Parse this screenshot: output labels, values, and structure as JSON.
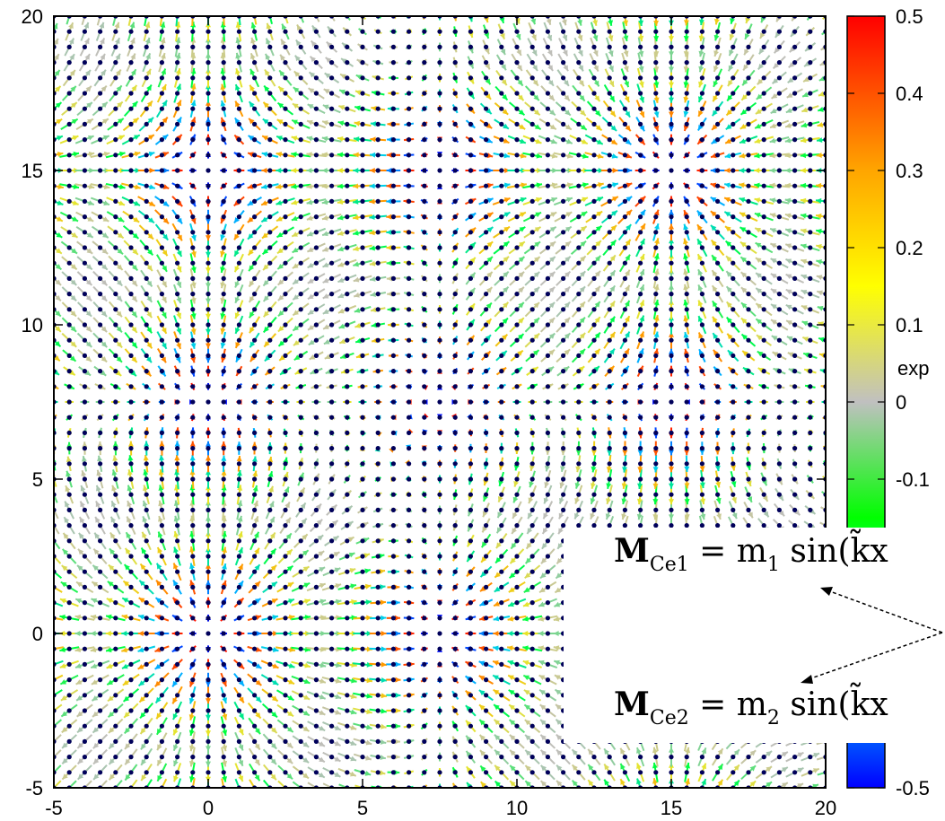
{
  "chart_data": {
    "type": "vector-field",
    "title": "",
    "xlabel": "",
    "ylabel": "",
    "xlim": [
      -5,
      20
    ],
    "ylim": [
      -5,
      20
    ],
    "x_ticks": [
      "-5",
      "0",
      "5",
      "10",
      "15",
      "20"
    ],
    "y_ticks": [
      "-5",
      "0",
      "5",
      "10",
      "15",
      "20"
    ],
    "x_tick_values": [
      -5,
      0,
      5,
      10,
      15,
      20
    ],
    "y_tick_values": [
      -5,
      0,
      5,
      10,
      15,
      20
    ],
    "grid": false,
    "lattice_spacing": 0.5,
    "field_period": 15,
    "symmetry_lines": [
      0,
      7.5,
      15
    ],
    "colorbar": {
      "min": -0.5,
      "max": 0.5,
      "ticks": [
        "0.5",
        "0.4",
        "0.3",
        "0.2",
        "0.1",
        "0",
        "-0.1",
        "-0.5"
      ],
      "tick_values": [
        0.5,
        0.4,
        0.3,
        0.2,
        0.1,
        0,
        -0.1,
        -0.5
      ],
      "partial_label": "exp",
      "colors": {
        "max": "#ff0000",
        "high": "#ffa500",
        "mid_high": "#ffff00",
        "zero": "#c0c0c0",
        "mid_low": "#00ff00",
        "low": "#00ffff",
        "min": "#0000ff"
      }
    },
    "annotations": [
      {
        "name": "M",
        "sub": "Ce1",
        "rest": " = m",
        "rest_sub": "1",
        "tail": " sin(k̃x"
      },
      {
        "name": "M",
        "sub": "Ce2",
        "rest": " = m",
        "rest_sub": "2",
        "tail": " sin(k̃x"
      }
    ],
    "atom_color": "#00005a"
  }
}
